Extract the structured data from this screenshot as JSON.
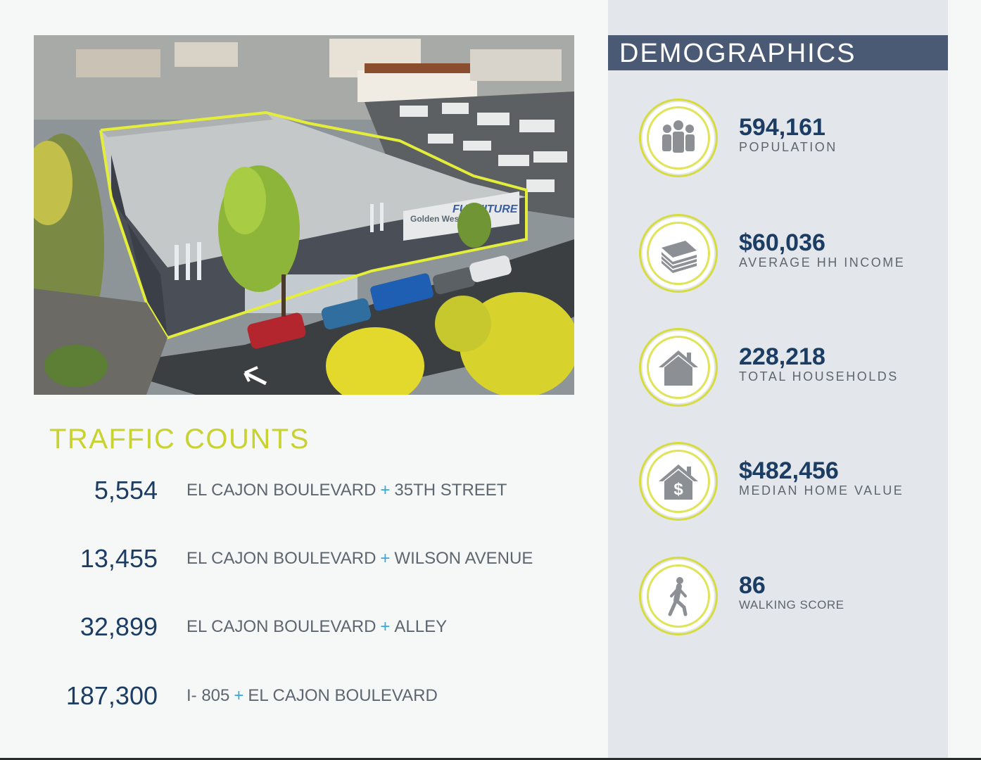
{
  "photo": {
    "sign_brand": "Golden West",
    "sign_text": "FURNITURE"
  },
  "traffic": {
    "title": "TRAFFIC COUNTS",
    "rows": [
      {
        "count": "5,554",
        "street_a": "EL CAJON BOULEVARD",
        "plus": "+",
        "street_b": "35TH STREET"
      },
      {
        "count": "13,455",
        "street_a": "EL CAJON BOULEVARD",
        "plus": "+",
        "street_b": "WILSON AVENUE"
      },
      {
        "count": "32,899",
        "street_a": "EL CAJON BOULEVARD",
        "plus": "+",
        "street_b": "ALLEY"
      },
      {
        "count": "187,300",
        "street_a": "I- 805",
        "plus": "+",
        "street_b": "EL CAJON BOULEVARD"
      }
    ]
  },
  "demographics": {
    "title": "DEMOGRAPHICS",
    "stats": [
      {
        "value": "594,161",
        "label": "POPULATION",
        "icon": "population-icon"
      },
      {
        "value": "$60,036",
        "label": "AVERAGE HH INCOME",
        "icon": "money-stack-icon"
      },
      {
        "value": "228,218",
        "label": "TOTAL HOUSEHOLDS",
        "icon": "house-icon"
      },
      {
        "value": "$482,456",
        "label": "MEDIAN HOME VALUE",
        "icon": "house-dollar-icon"
      },
      {
        "value": "86",
        "label": "WALKING SCORE",
        "icon": "walking-person-icon"
      }
    ]
  },
  "colors": {
    "navy": "#1c3d63",
    "lime": "#c8d230",
    "plus_blue": "#35a8dc",
    "panel": "#e3e6eb",
    "header": "#4b5a74"
  }
}
